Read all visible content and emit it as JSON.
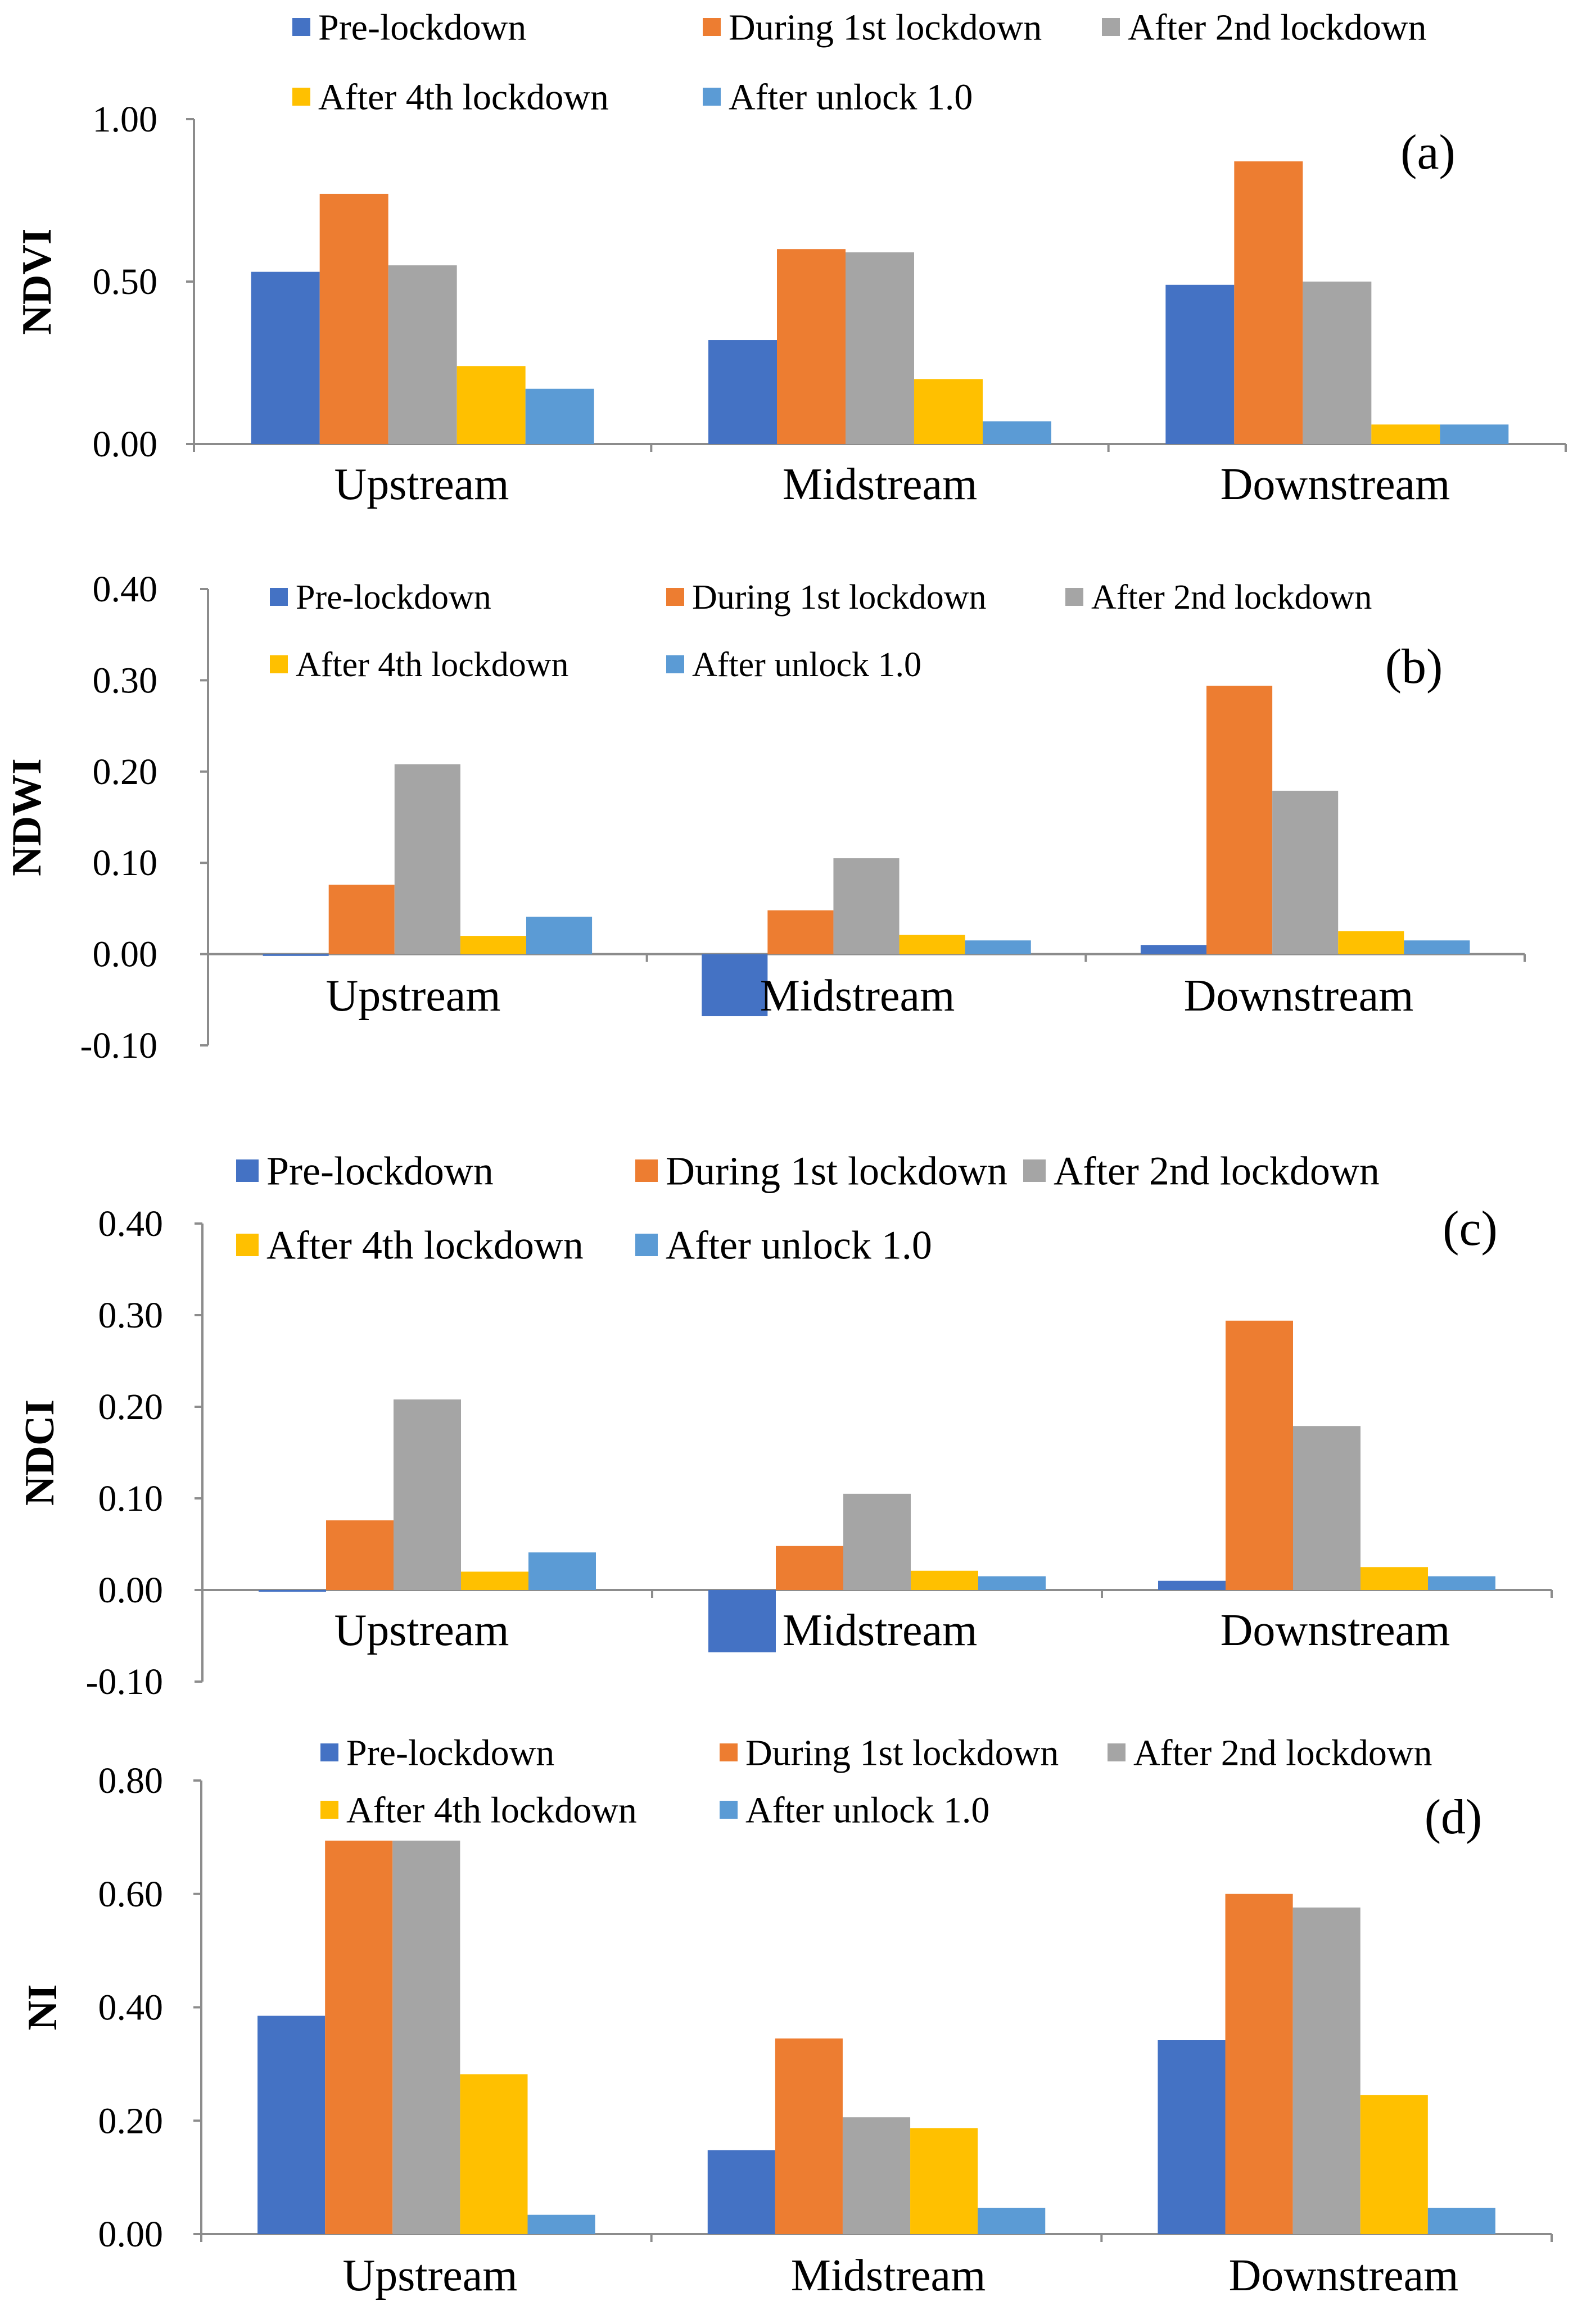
{
  "chart_data": [
    {
      "id": "a",
      "type": "bar",
      "panel_label": "(a)",
      "ylabel": "NDVI",
      "ylim": [
        0,
        1
      ],
      "yticks": [
        "0.00",
        "0.50",
        "1.00"
      ],
      "categories": [
        "Upstream",
        "Midstream",
        "Downstream"
      ],
      "colors": [
        "#4472C4",
        "#ED7D31",
        "#A5A5A5",
        "#FFC000",
        "#5B9BD5"
      ],
      "series": [
        {
          "name": "Pre-lockdown",
          "values": [
            0.53,
            0.32,
            0.49
          ]
        },
        {
          "name": "During 1st lockdown",
          "values": [
            0.77,
            0.6,
            0.87
          ]
        },
        {
          "name": "After 2nd lockdown",
          "values": [
            0.55,
            0.59,
            0.5
          ]
        },
        {
          "name": "After 4th lockdown",
          "values": [
            0.24,
            0.2,
            0.06
          ]
        },
        {
          "name": "After unlock 1.0",
          "values": [
            0.17,
            0.07,
            0.06
          ]
        }
      ],
      "legend_rows": [
        [
          0,
          1,
          2
        ],
        [
          3,
          4
        ]
      ]
    },
    {
      "id": "b",
      "type": "bar",
      "panel_label": "(b)",
      "ylabel": "NDWI",
      "ylim": [
        -0.1,
        0.4
      ],
      "yticks": [
        "-0.10",
        "0.00",
        "0.10",
        "0.20",
        "0.30",
        "0.40"
      ],
      "categories": [
        "Upstream",
        "Midstream",
        "Downstream"
      ],
      "colors": [
        "#4472C4",
        "#ED7D31",
        "#A5A5A5",
        "#FFC000",
        "#5B9BD5"
      ],
      "series": [
        {
          "name": "Pre-lockdown",
          "values": [
            -0.002,
            -0.068,
            0.01
          ]
        },
        {
          "name": "During 1st lockdown",
          "values": [
            0.076,
            0.048,
            0.294
          ]
        },
        {
          "name": "After 2nd lockdown",
          "values": [
            0.208,
            0.105,
            0.179
          ]
        },
        {
          "name": "After 4th lockdown",
          "values": [
            0.02,
            0.021,
            0.025
          ]
        },
        {
          "name": "After unlock 1.0",
          "values": [
            0.041,
            0.015,
            0.015
          ]
        }
      ],
      "legend_rows": [
        [
          0,
          1,
          2
        ],
        [
          3,
          4
        ]
      ]
    },
    {
      "id": "c",
      "type": "bar",
      "panel_label": "(c)",
      "ylabel": "NDCI",
      "ylim": [
        -0.1,
        0.4
      ],
      "yticks": [
        "-0.10",
        "0.00",
        "0.10",
        "0.20",
        "0.30",
        "0.40"
      ],
      "categories": [
        "Upstream",
        "Midstream",
        "Downstream"
      ],
      "colors": [
        "#4472C4",
        "#ED7D31",
        "#A5A5A5",
        "#FFC000",
        "#5B9BD5"
      ],
      "series": [
        {
          "name": "Pre-lockdown",
          "values": [
            -0.002,
            -0.068,
            0.01
          ]
        },
        {
          "name": "During 1st lockdown",
          "values": [
            0.076,
            0.048,
            0.294
          ]
        },
        {
          "name": "After 2nd lockdown",
          "values": [
            0.208,
            0.105,
            0.179
          ]
        },
        {
          "name": "After 4th lockdown",
          "values": [
            0.02,
            0.021,
            0.025
          ]
        },
        {
          "name": "After unlock 1.0",
          "values": [
            0.041,
            0.015,
            0.015
          ]
        }
      ],
      "legend_rows": [
        [
          0,
          1,
          2
        ],
        [
          3,
          4
        ]
      ]
    },
    {
      "id": "d",
      "type": "bar",
      "panel_label": "(d)",
      "ylabel": "NI",
      "ylim": [
        0,
        0.8
      ],
      "yticks": [
        "0.00",
        "0.20",
        "0.40",
        "0.60",
        "0.80"
      ],
      "categories": [
        "Upstream",
        "Midstream",
        "Downstream"
      ],
      "colors": [
        "#4472C4",
        "#ED7D31",
        "#A5A5A5",
        "#FFC000",
        "#5B9BD5"
      ],
      "series": [
        {
          "name": "Pre-lockdown",
          "values": [
            0.385,
            0.148,
            0.342
          ]
        },
        {
          "name": "During 1st lockdown",
          "values": [
            0.694,
            0.345,
            0.6
          ]
        },
        {
          "name": "After 2nd lockdown",
          "values": [
            0.694,
            0.206,
            0.576
          ]
        },
        {
          "name": "After 4th lockdown",
          "values": [
            0.282,
            0.187,
            0.245
          ]
        },
        {
          "name": "After unlock 1.0",
          "values": [
            0.034,
            0.046,
            0.046
          ]
        }
      ],
      "legend_rows": [
        [
          0,
          1,
          2
        ],
        [
          3,
          4
        ]
      ]
    }
  ]
}
